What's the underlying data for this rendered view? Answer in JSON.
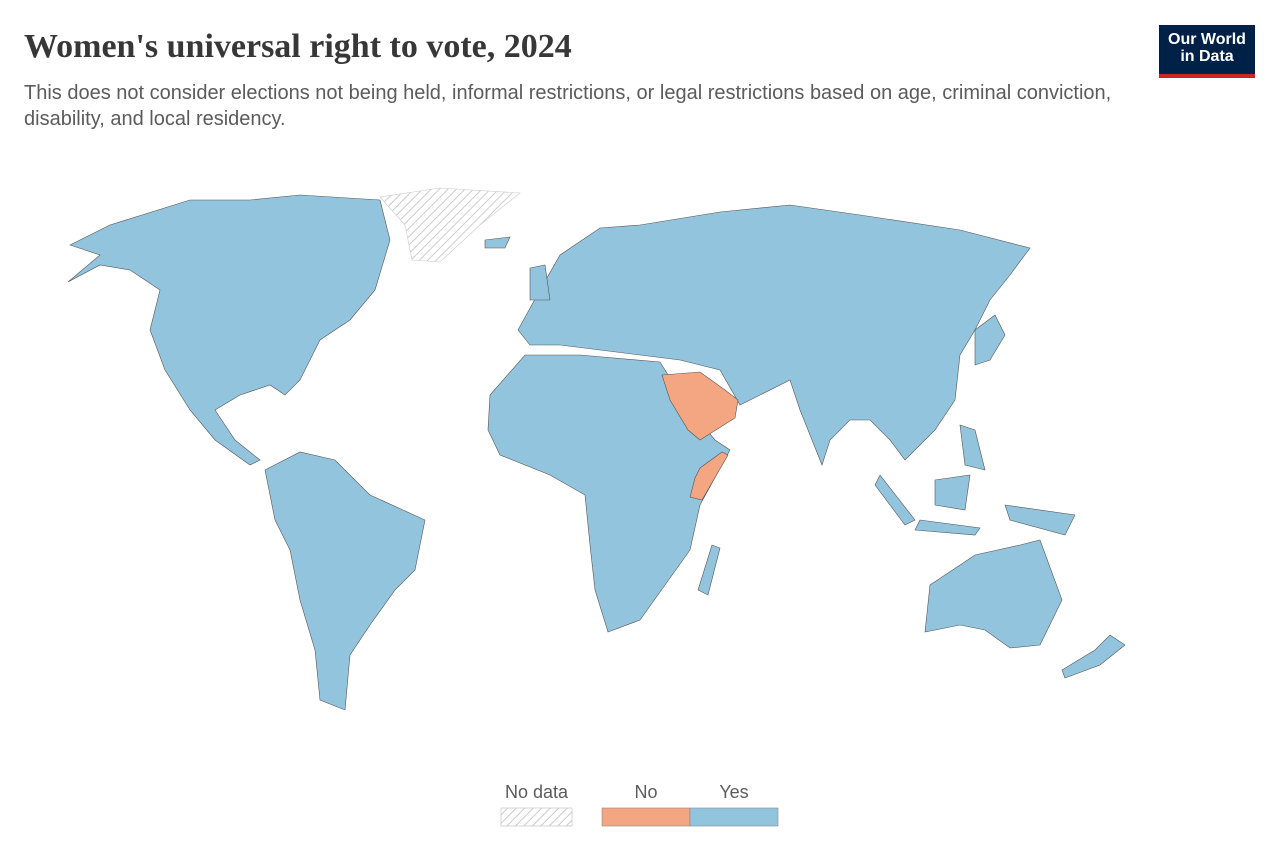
{
  "header": {
    "title": "Women's universal right to vote, 2024",
    "subtitle": "This does not consider elections not being held, informal restrictions, or legal restrictions based on age, criminal conviction, disability, and local residency.",
    "logo": [
      "Our World",
      "in Data"
    ]
  },
  "legend": {
    "items": [
      {
        "label": "No data"
      },
      {
        "label": "No",
        "color": "#f4a582"
      },
      {
        "label": "Yes",
        "color": "#93c4de"
      }
    ]
  }
}
